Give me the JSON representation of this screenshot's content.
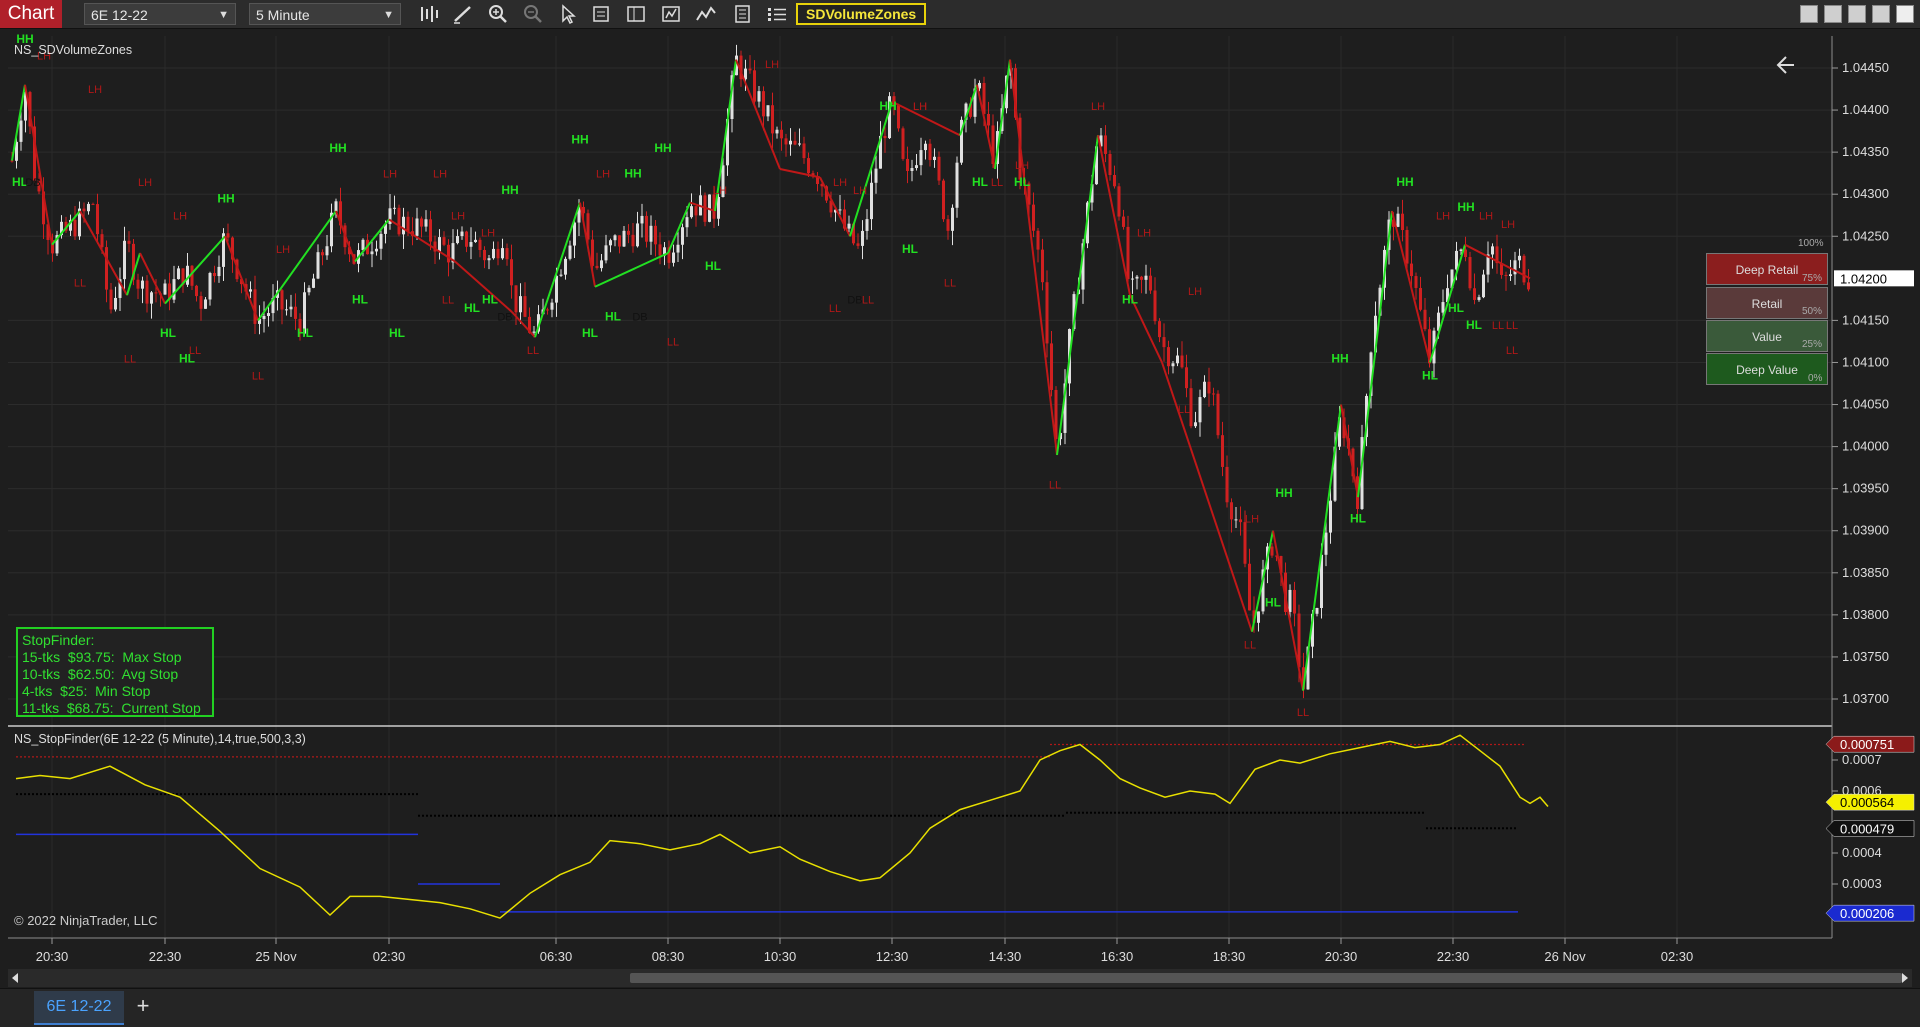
{
  "toolbar": {
    "chart_label": "Chart",
    "instrument": "6E 12-22",
    "interval": "5 Minute",
    "indicator_badge": "SDVolumeZones",
    "icons": [
      "bars-type-icon",
      "draw-tool-icon",
      "zoom-in-icon",
      "zoom-out-icon",
      "pointer-icon",
      "data-box-icon",
      "templates-icon",
      "strategies-icon",
      "indicators-icon",
      "properties-icon",
      "chart-trader-icon"
    ]
  },
  "window_buttons": [
    "tile-icon",
    "restore-icon",
    "minimize-icon",
    "maximize-icon",
    "close-icon"
  ],
  "main_panel": {
    "title": "NS_SDVolumeZones",
    "price_axis": [
      "1.04450",
      "1.04400",
      "1.04350",
      "1.04300",
      "1.04250",
      "1.04150",
      "1.04100",
      "1.04050",
      "1.04000",
      "1.03950",
      "1.03900",
      "1.03850",
      "1.03800",
      "1.03750",
      "1.03700"
    ],
    "current_price": "1.04200",
    "zones": [
      {
        "label": "Deep Retail",
        "pct": "75%",
        "color": "#8b1e1e"
      },
      {
        "label": "Retail",
        "pct": "50%",
        "color": "#5a3a3a"
      },
      {
        "label": "Value",
        "pct": "25%",
        "color": "#3a5a3a"
      },
      {
        "label": "Deep Value",
        "pct": "0%",
        "color": "#1e5a1e"
      }
    ],
    "zone_top_pct": "100%"
  },
  "stopfinder": {
    "title": "StopFinder:",
    "lines": [
      "15-tks  $93.75:  Max Stop",
      "10-tks  $62.50:  Avg Stop",
      "4-tks  $25:  Min Stop",
      "11-tks  $68.75:  Current Stop"
    ]
  },
  "indicator_panel": {
    "title": "NS_StopFinder(6E 12-22 (5 Minute),14,true,500,3,3)",
    "axis": [
      "0.0007",
      "0.0006",
      "0.0004",
      "0.0003"
    ],
    "flags": [
      {
        "value": "0.000751",
        "color": "#8b1a1a",
        "text_color": "#fff"
      },
      {
        "value": "0.000564",
        "color": "#f5f000",
        "text_color": "#000"
      },
      {
        "value": "0.000479",
        "color": "#111111",
        "text_color": "#fff"
      },
      {
        "value": "0.000206",
        "color": "#1a2ad0",
        "text_color": "#fff"
      }
    ],
    "copyright": "© 2022 NinjaTrader, LLC"
  },
  "time_axis": [
    "20:30",
    "22:30",
    "25 Nov",
    "02:30",
    "06:30",
    "08:30",
    "10:30",
    "12:30",
    "14:30",
    "16:30",
    "18:30",
    "20:30",
    "22:30",
    "26 Nov",
    "02:30"
  ],
  "swing_labels": {
    "hh": "HH",
    "hl": "HL",
    "lh": "LH",
    "ll": "LL",
    "db": "DB"
  },
  "tabs": [
    {
      "label": "6E 12-22"
    }
  ],
  "add_tab": "+",
  "colors": {
    "up": "#e0e0e0",
    "down": "#d02020",
    "swing_up": "#22e022",
    "swing_down": "#c01818",
    "stop_line": "#e8e000"
  }
}
